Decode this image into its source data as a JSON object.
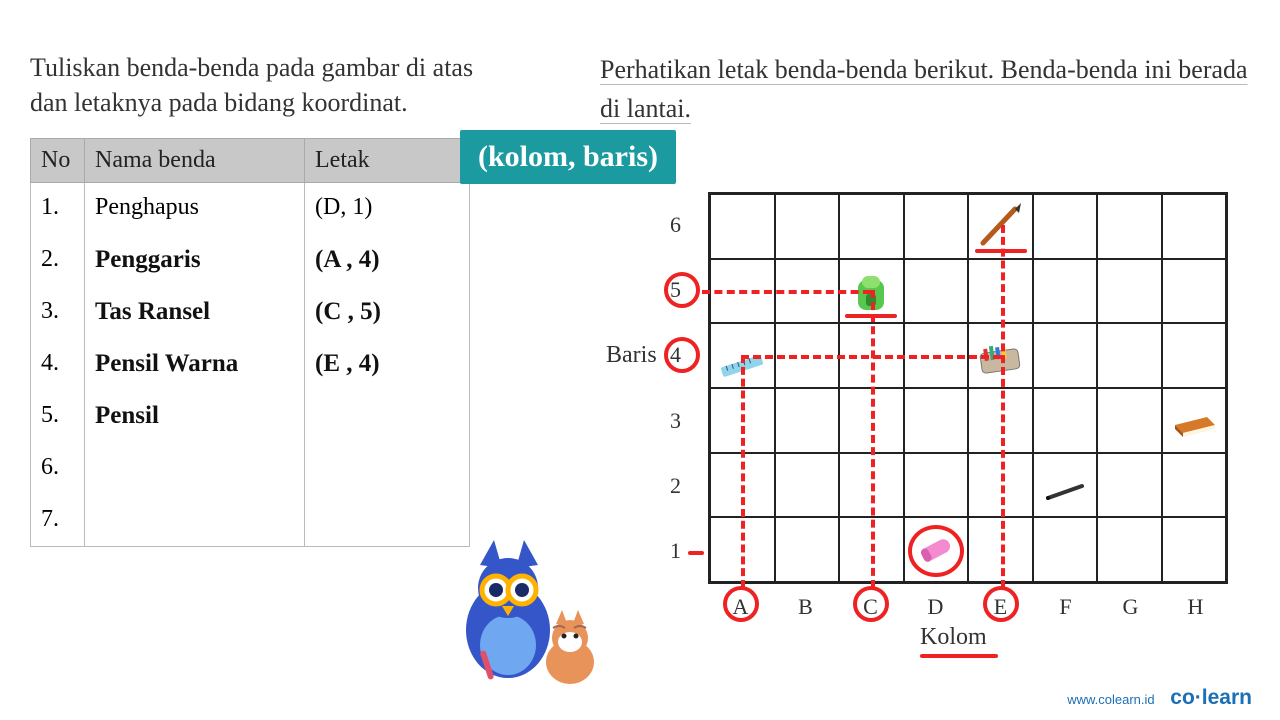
{
  "left": {
    "instruction": "Tuliskan benda-benda pada gambar di atas dan letaknya pada bidang koordinat.",
    "headers": {
      "no": "No",
      "nama": "Nama benda",
      "letak": "Letak"
    },
    "rows": [
      {
        "no": "1.",
        "nama": "Penghapus",
        "letak": "(D, 1)",
        "hand_nama": false,
        "hand_letak": false
      },
      {
        "no": "2.",
        "nama": "Penggaris",
        "letak": "(A , 4)",
        "hand_nama": true,
        "hand_letak": true
      },
      {
        "no": "3.",
        "nama": "Tas Ransel",
        "letak": "(C , 5)",
        "hand_nama": true,
        "hand_letak": true
      },
      {
        "no": "4.",
        "nama": "Pensil Warna",
        "letak": "(E , 4)",
        "hand_nama": true,
        "hand_letak": true
      },
      {
        "no": "5.",
        "nama": "Pensil",
        "letak": "",
        "hand_nama": true,
        "hand_letak": true
      },
      {
        "no": "6.",
        "nama": "",
        "letak": "",
        "hand_nama": true,
        "hand_letak": true
      },
      {
        "no": "7.",
        "nama": "",
        "letak": "",
        "hand_nama": true,
        "hand_letak": true
      }
    ]
  },
  "badge": "(kolom, baris)",
  "right": {
    "instruction": "Perhatikan letak benda-benda berikut. Benda-benda ini berada di lantai.",
    "baris_label": "Baris",
    "kolom_label": "Kolom",
    "rows": [
      "6",
      "5",
      "4",
      "3",
      "2",
      "1"
    ],
    "cols": [
      "A",
      "B",
      "C",
      "D",
      "E",
      "F",
      "G",
      "H"
    ],
    "items": [
      {
        "name": "pencil",
        "col": "E",
        "row": 6
      },
      {
        "name": "backpack",
        "col": "C",
        "row": 5
      },
      {
        "name": "ruler",
        "col": "A",
        "row": 4
      },
      {
        "name": "pencil-case",
        "col": "E",
        "row": 4
      },
      {
        "name": "book",
        "col": "H",
        "row": 3
      },
      {
        "name": "pen",
        "col": "F",
        "row": 2
      },
      {
        "name": "eraser",
        "col": "D",
        "row": 1
      }
    ],
    "annotations": {
      "circle_rows": [
        5,
        4
      ],
      "circle_cols": [
        "A",
        "C",
        "E"
      ],
      "circle_items": [
        "eraser"
      ],
      "underline_items": [
        "pencil",
        "backpack"
      ],
      "underline_labels": [
        "Kolom"
      ],
      "dash_lines": [
        {
          "type": "h",
          "row": 5,
          "from_col": "_label",
          "to_col": "C"
        },
        {
          "type": "h",
          "row": 4,
          "from_col": "A",
          "to_col": "E"
        },
        {
          "type": "v",
          "col": "A",
          "from_row": 4,
          "to_row": "_label"
        },
        {
          "type": "v",
          "col": "C",
          "from_row": 5,
          "to_row": "_label"
        },
        {
          "type": "v",
          "col": "E",
          "from_row": 6,
          "to_row": "_label"
        }
      ]
    },
    "colors": {
      "annotation": "#e22222",
      "grid_border": "#222222",
      "badge_bg": "#1b9aa0",
      "backpack_body": "#57c84d",
      "backpack_flap": "#8de06e",
      "eraser": "#f48bcf",
      "book": "#d67a2a",
      "ruler": "#8fd4e8",
      "pencil": "#b55a1a",
      "pen": "#333333"
    }
  },
  "footer": {
    "url": "www.colearn.id",
    "brand_a": "co",
    "brand_dot": "·",
    "brand_b": "learn"
  }
}
